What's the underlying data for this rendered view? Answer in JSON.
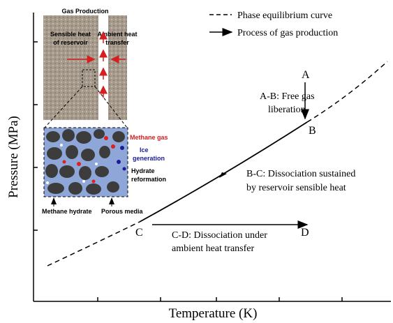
{
  "axes": {
    "y_label": "Pressure (MPa)",
    "x_label": "Temperature (K)"
  },
  "legend": {
    "items": [
      "Phase equilibrium curve",
      "Process of gas production"
    ]
  },
  "points": [
    "A",
    "B",
    "C",
    "D"
  ],
  "annotations": {
    "ab": [
      "A-B: Free gas",
      "liberation"
    ],
    "bc": [
      "B-C: Dissociation sustained",
      "by reservoir sensible heat"
    ],
    "cd": [
      "C-D: Dissociation under",
      "ambient heat transfer"
    ]
  },
  "inset": {
    "title": "Gas Production",
    "left": [
      "Sensible heat",
      "of reservoir"
    ],
    "right": [
      "Ambient heat",
      "transfer"
    ],
    "methane_gas": "Methane gas",
    "ice": [
      "Ice",
      "generation"
    ],
    "reformation": [
      "Hydrate",
      "reformation"
    ],
    "methane_hydrate": "Methane hydrate",
    "porous_media": "Porous media"
  }
}
